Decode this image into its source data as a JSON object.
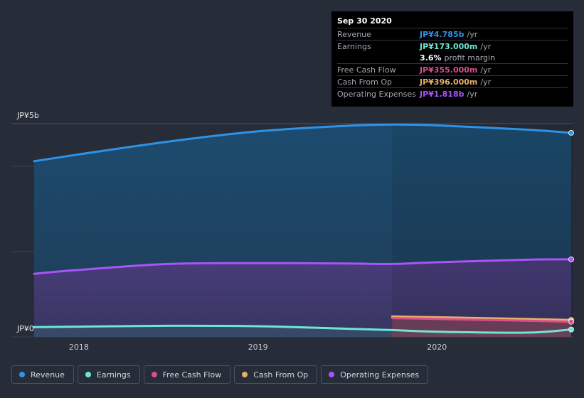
{
  "tooltip": {
    "date": "Sep 30 2020",
    "revenue": {
      "label": "Revenue",
      "value": "JP¥4.785b",
      "unit": "/yr",
      "color": "#2e93e6"
    },
    "earnings": {
      "label": "Earnings",
      "value": "JP¥173.000m",
      "unit": "/yr",
      "color": "#6ee6d6"
    },
    "margin": {
      "value": "3.6%",
      "text": "profit margin"
    },
    "fcf": {
      "label": "Free Cash Flow",
      "value": "JP¥355.000m",
      "unit": "/yr",
      "color": "#d94f8c"
    },
    "cfo": {
      "label": "Cash From Op",
      "value": "JP¥396.000m",
      "unit": "/yr",
      "color": "#e8b066"
    },
    "opex": {
      "label": "Operating Expenses",
      "value": "JP¥1.818b",
      "unit": "/yr",
      "color": "#a855f7"
    }
  },
  "legend": [
    {
      "label": "Revenue",
      "color": "#2e93e6"
    },
    {
      "label": "Earnings",
      "color": "#6ee6d6"
    },
    {
      "label": "Free Cash Flow",
      "color": "#d94f8c"
    },
    {
      "label": "Cash From Op",
      "color": "#e8b066"
    },
    {
      "label": "Operating Expenses",
      "color": "#a855f7"
    }
  ],
  "chart_data": {
    "type": "area",
    "title": "",
    "xlabel": "",
    "ylabel": "",
    "y_tick_labels": [
      "JP¥0",
      "JP¥5b"
    ],
    "ylim": [
      0,
      5
    ],
    "y_unit": "JP¥ billions",
    "xlim": [
      2017.75,
      2020.75
    ],
    "x_ticks": [
      2018,
      2019,
      2020
    ],
    "x_tick_labels": [
      "2018",
      "2019",
      "2020"
    ],
    "highlight_start": 2019.75,
    "series": [
      {
        "name": "Revenue",
        "color": "#2e93e6",
        "x": [
          2017.75,
          2018.0,
          2018.5,
          2019.0,
          2019.5,
          2019.75,
          2020.0,
          2020.5,
          2020.75
        ],
        "values": [
          4.12,
          4.28,
          4.58,
          4.82,
          4.95,
          4.98,
          4.96,
          4.86,
          4.785
        ]
      },
      {
        "name": "Operating Expenses",
        "color": "#a855f7",
        "x": [
          2017.75,
          2018.0,
          2018.5,
          2019.0,
          2019.5,
          2019.75,
          2020.0,
          2020.5,
          2020.75
        ],
        "values": [
          1.48,
          1.57,
          1.71,
          1.73,
          1.72,
          1.71,
          1.75,
          1.81,
          1.818
        ]
      },
      {
        "name": "Earnings",
        "color": "#6ee6d6",
        "x": [
          2017.75,
          2018.0,
          2018.5,
          2019.0,
          2019.5,
          2019.75,
          2020.0,
          2020.5,
          2020.75
        ],
        "values": [
          0.23,
          0.24,
          0.26,
          0.25,
          0.19,
          0.16,
          0.12,
          0.1,
          0.173
        ]
      },
      {
        "name": "Cash From Op",
        "color": "#e8b066",
        "x": [
          2019.75,
          2020.0,
          2020.5,
          2020.75
        ],
        "values": [
          0.48,
          0.46,
          0.42,
          0.396
        ]
      },
      {
        "name": "Free Cash Flow",
        "color": "#d94f8c",
        "x": [
          2019.75,
          2020.0,
          2020.5,
          2020.75
        ],
        "values": [
          0.44,
          0.42,
          0.38,
          0.355
        ]
      }
    ]
  }
}
